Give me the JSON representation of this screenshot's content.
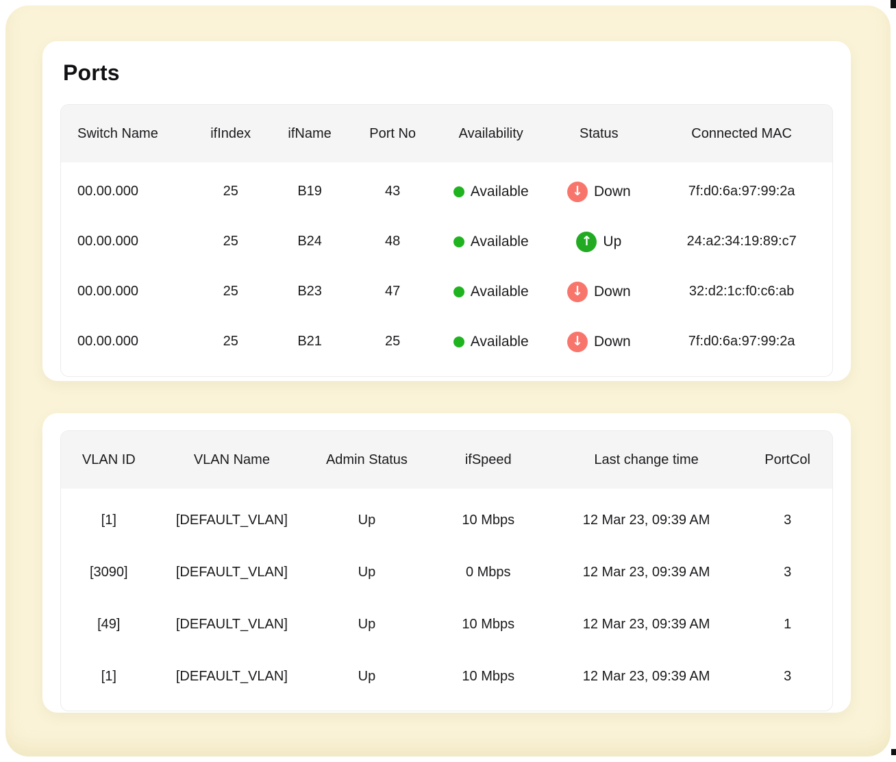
{
  "colors": {
    "panel_background": "#faf3d7",
    "card_background": "#ffffff",
    "table_header_background": "#f5f5f5",
    "table_border": "#ececec",
    "text": "#1c1c1e",
    "availability_green": "#1fb41f",
    "status_up_green": "#22ab22",
    "status_down_red": "#f8756c"
  },
  "icons": {
    "availability": "green-dot-icon",
    "status_up": "arrow-up-circle-icon",
    "status_down": "arrow-down-circle-icon",
    "up_glyph": "↑",
    "down_glyph": "↓"
  },
  "ports_card": {
    "title": "Ports",
    "columns": [
      "Switch Name",
      "ifIndex",
      "ifName",
      "Port No",
      "Availability",
      "Status",
      "Connected MAC"
    ],
    "rows": [
      {
        "switch_name": "00.00.000",
        "if_index": "25",
        "if_name": "B19",
        "port_no": "43",
        "availability": "Available",
        "status": "Down",
        "connected_mac": "7f:d0:6a:97:99:2a"
      },
      {
        "switch_name": "00.00.000",
        "if_index": "25",
        "if_name": "B24",
        "port_no": "48",
        "availability": "Available",
        "status": "Up",
        "connected_mac": "24:a2:34:19:89:c7"
      },
      {
        "switch_name": "00.00.000",
        "if_index": "25",
        "if_name": "B23",
        "port_no": "47",
        "availability": "Available",
        "status": "Down",
        "connected_mac": "32:d2:1c:f0:c6:ab"
      },
      {
        "switch_name": "00.00.000",
        "if_index": "25",
        "if_name": "B21",
        "port_no": "25",
        "availability": "Available",
        "status": "Down",
        "connected_mac": "7f:d0:6a:97:99:2a"
      }
    ]
  },
  "vlan_card": {
    "columns": [
      "VLAN ID",
      "VLAN Name",
      "Admin Status",
      "ifSpeed",
      "Last change time",
      "PortCol"
    ],
    "rows": [
      {
        "vlan_id": "[1]",
        "vlan_name": "[DEFAULT_VLAN]",
        "admin_status": "Up",
        "if_speed": "10 Mbps",
        "last_change_time": "12 Mar 23, 09:39 AM",
        "port_col": "3"
      },
      {
        "vlan_id": "[3090]",
        "vlan_name": "[DEFAULT_VLAN]",
        "admin_status": "Up",
        "if_speed": "0 Mbps",
        "last_change_time": "12 Mar 23, 09:39 AM",
        "port_col": "3"
      },
      {
        "vlan_id": "[49]",
        "vlan_name": "[DEFAULT_VLAN]",
        "admin_status": "Up",
        "if_speed": "10 Mbps",
        "last_change_time": "12 Mar 23, 09:39 AM",
        "port_col": "1"
      },
      {
        "vlan_id": "[1]",
        "vlan_name": "[DEFAULT_VLAN]",
        "admin_status": "Up",
        "if_speed": "10 Mbps",
        "last_change_time": "12 Mar 23, 09:39 AM",
        "port_col": "3"
      }
    ]
  }
}
